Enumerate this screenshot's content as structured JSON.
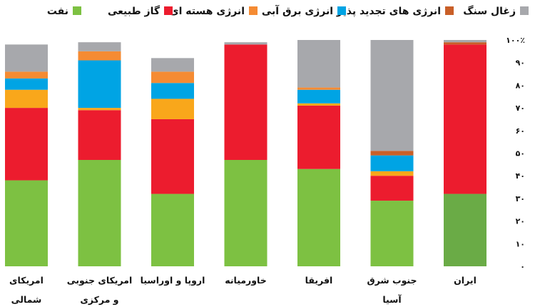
{
  "chart_data": {
    "type": "bar",
    "stacked": true,
    "percent": true,
    "categories": [
      [
        "امریکای",
        "شمالی"
      ],
      [
        "امریکای جنوبی",
        "و مرکزی"
      ],
      [
        "اروپا و اوراسیا"
      ],
      [
        "خاورمیانه"
      ],
      [
        "افریقا"
      ],
      [
        "جنوب شرق",
        "آسیا"
      ],
      [
        "ایران"
      ]
    ],
    "series": [
      {
        "name": "نفت",
        "color": "#7dc142",
        "values": [
          38,
          47,
          32,
          47,
          43,
          29,
          32
        ]
      },
      {
        "name": "گاز طبیعی",
        "color": "#ec1c2e",
        "values": [
          32,
          22,
          33,
          51,
          28,
          11,
          66
        ]
      },
      {
        "name": "انرژی هسته ای",
        "color": "#f58b33",
        "values": [
          3,
          4,
          5,
          0,
          1,
          0,
          0
        ]
      },
      {
        "name": "انرژی برق آبی",
        "color": "#00a4e4",
        "values": [
          5,
          21,
          7,
          0,
          6,
          7,
          0
        ]
      },
      {
        "name": "انرژی های تجدید پذیر",
        "color": "#c95f28",
        "values": [
          0,
          0,
          0,
          0,
          0,
          2,
          1
        ]
      },
      {
        "name": "زغال سنگ",
        "color": "#a7a8ac",
        "values": [
          12,
          4,
          6,
          1,
          21,
          49,
          1
        ]
      },
      {
        "name": "",
        "color": "#f9a71b",
        "values": [
          8,
          1,
          9,
          0,
          1,
          2,
          0
        ],
        "legend": false
      }
    ],
    "stack_order": [
      0,
      1,
      6,
      3,
      2,
      4,
      5
    ],
    "bar_overrides": {
      "6": {
        "0": "#6aab46"
      }
    },
    "legend": {
      "position": "top",
      "order": [
        5,
        4,
        3,
        2,
        1,
        0
      ]
    },
    "yticks": [
      "۱۰۰٪",
      "۹۰",
      "۸۰",
      "۷۰",
      "۶۰",
      "۵۰",
      "۴۰",
      "۳۰",
      "۲۰",
      "۱۰",
      "۰"
    ],
    "ylim": [
      0,
      100
    ],
    "grid": false,
    "y_axis_side": "right"
  }
}
